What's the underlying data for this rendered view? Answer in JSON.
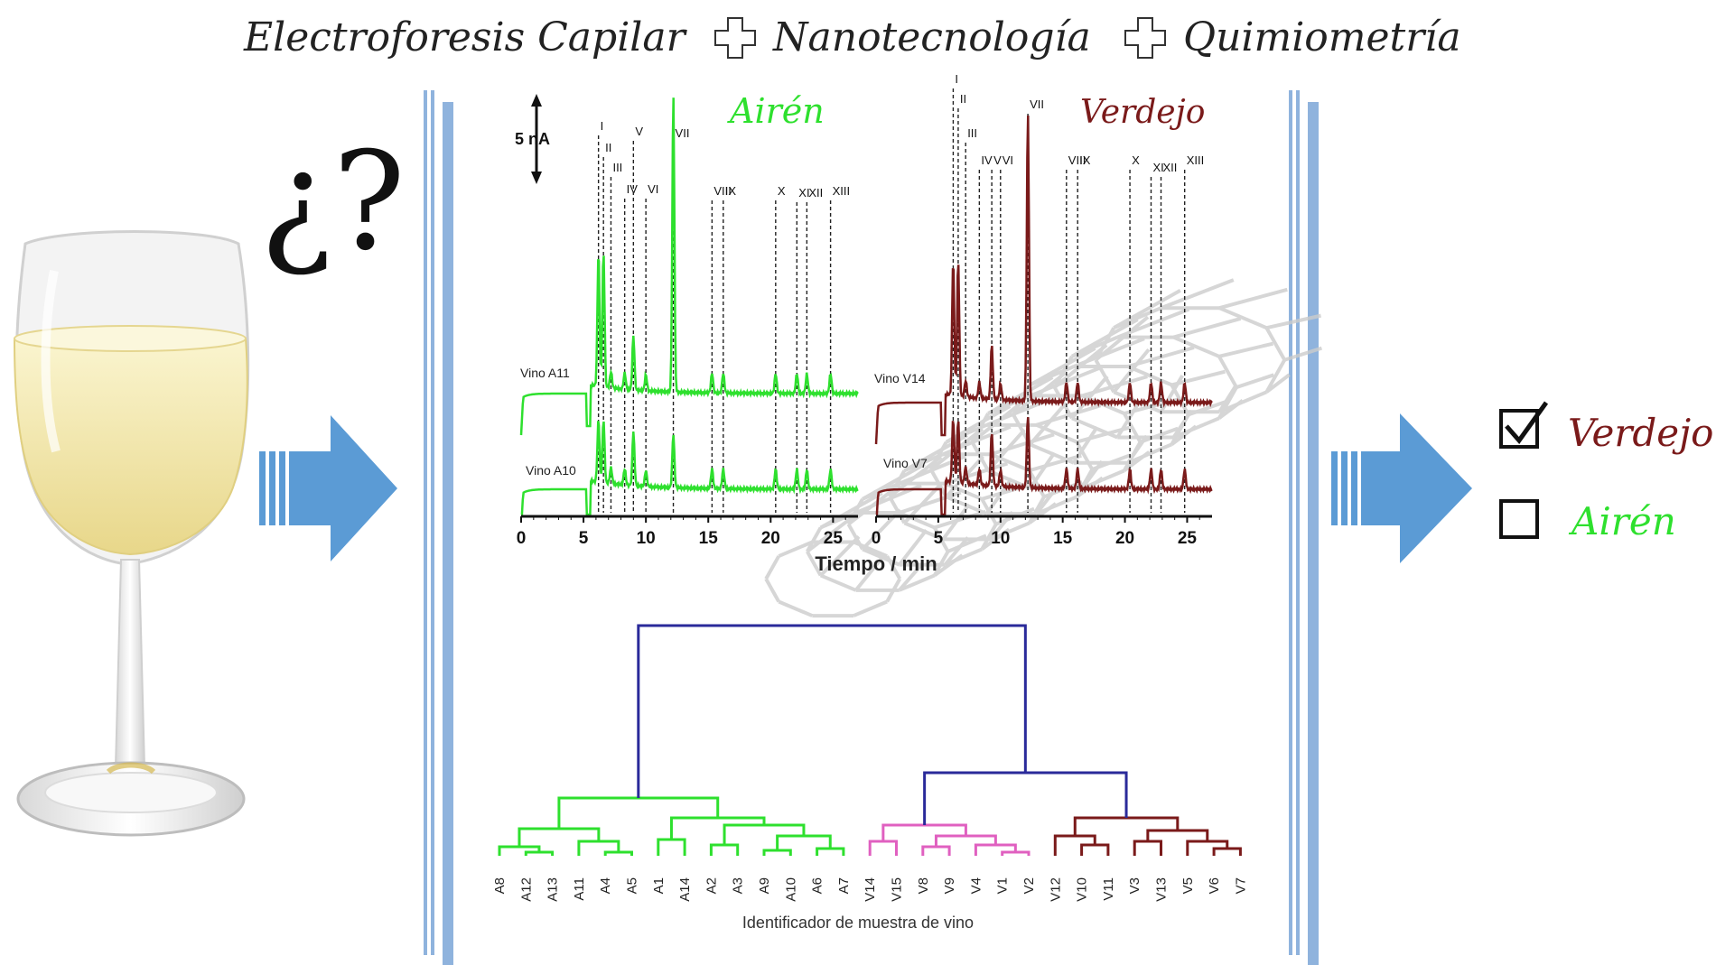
{
  "header": {
    "part1": "Electroforesis Capilar",
    "part2": "Nanotecnología",
    "part3": "Quimiometría"
  },
  "question_mark": "¿?",
  "scale_bar_label": "5 nA",
  "colors": {
    "airen": "#2ee02e",
    "verdejo": "#7a1a1a",
    "pink": "#e060c0",
    "blue": "#2a2a9a",
    "panel_bar": "#8fb3dd",
    "arrow": "#5b9bd5"
  },
  "electropherogram": {
    "airen_title": "Airén",
    "verdejo_title": "Verdejo",
    "x_label": "Tiempo / min",
    "x_ticks": [
      "0",
      "5",
      "10",
      "15",
      "20",
      "25"
    ],
    "xlim": [
      0,
      27
    ],
    "traces": {
      "airen_top": "Vino A11",
      "airen_bottom": "Vino A10",
      "verdejo_top": "Vino V14",
      "verdejo_bottom": "Vino V7"
    },
    "airen_peaks": [
      {
        "label": "I",
        "t": 6.2
      },
      {
        "label": "II",
        "t": 6.6
      },
      {
        "label": "III",
        "t": 7.2
      },
      {
        "label": "IV",
        "t": 8.3
      },
      {
        "label": "V",
        "t": 9.0
      },
      {
        "label": "VI",
        "t": 10.0
      },
      {
        "label": "VII",
        "t": 12.2
      },
      {
        "label": "VIII",
        "t": 15.3
      },
      {
        "label": "IX",
        "t": 16.2
      },
      {
        "label": "X",
        "t": 20.4
      },
      {
        "label": "XI",
        "t": 22.1
      },
      {
        "label": "XII",
        "t": 22.9
      },
      {
        "label": "XIII",
        "t": 24.8
      }
    ],
    "verdejo_peaks": [
      {
        "label": "I",
        "t": 6.2
      },
      {
        "label": "II",
        "t": 6.6
      },
      {
        "label": "III",
        "t": 7.2
      },
      {
        "label": "IV",
        "t": 8.3
      },
      {
        "label": "V",
        "t": 9.3
      },
      {
        "label": "VI",
        "t": 10.0
      },
      {
        "label": "VII",
        "t": 12.2
      },
      {
        "label": "VIII",
        "t": 15.3
      },
      {
        "label": "IX",
        "t": 16.2
      },
      {
        "label": "X",
        "t": 20.4
      },
      {
        "label": "XI",
        "t": 22.1
      },
      {
        "label": "XII",
        "t": 22.9
      },
      {
        "label": "XIII",
        "t": 24.8
      }
    ]
  },
  "dendrogram": {
    "x_label": "Identificador de muestra de vino",
    "leaves": [
      "A8",
      "A12",
      "A13",
      "A11",
      "A4",
      "A5",
      "A1",
      "A14",
      "A2",
      "A3",
      "A9",
      "A10",
      "A6",
      "A7",
      "V14",
      "V15",
      "V8",
      "V9",
      "V4",
      "V1",
      "V2",
      "V12",
      "V10",
      "V11",
      "V3",
      "V13",
      "V5",
      "V6",
      "V7"
    ]
  },
  "result": {
    "option_checked": "Verdejo",
    "option_unchecked": "Airén",
    "checked": true
  }
}
